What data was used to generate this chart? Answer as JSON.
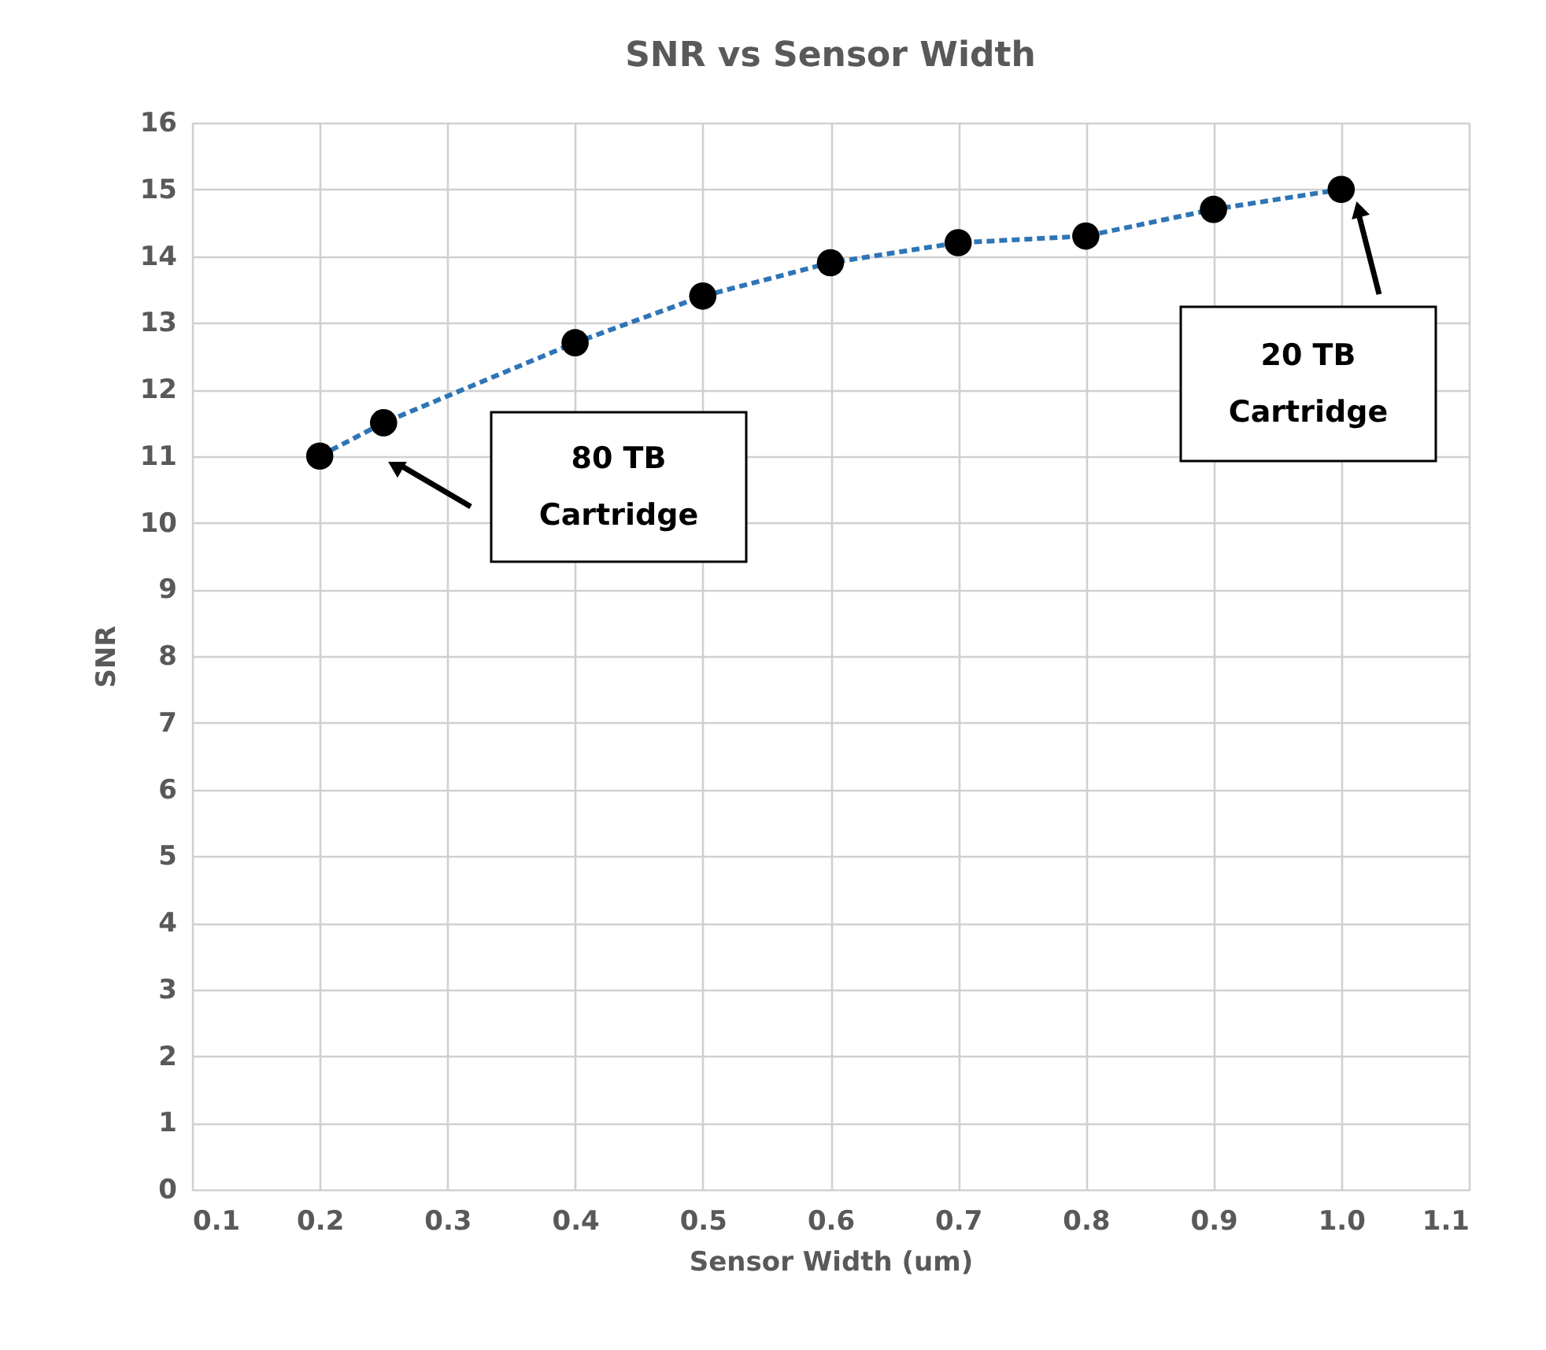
{
  "chart_data": {
    "type": "line",
    "title": "SNR vs Sensor Width",
    "xlabel": "Sensor Width (um)",
    "ylabel": "SNR",
    "x": [
      0.2,
      0.25,
      0.4,
      0.5,
      0.6,
      0.7,
      0.8,
      0.9,
      1.0
    ],
    "series": [
      {
        "color": "#2e75b6",
        "values": [
          11,
          11.5,
          12.7,
          13.4,
          13.9,
          14.2,
          14.3,
          14.7,
          15.0
        ]
      }
    ],
    "xlim": [
      0.1,
      1.1
    ],
    "xticks": [
      0.1,
      0.2,
      0.3,
      0.4,
      0.5,
      0.6,
      0.7,
      0.8,
      0.9,
      {
        "value": 1.0,
        "label": "1.0"
      },
      1.1
    ],
    "ylim": [
      0,
      16
    ],
    "yticks": [
      0,
      1,
      2,
      3,
      4,
      5,
      6,
      7,
      8,
      9,
      10,
      11,
      12,
      13,
      14,
      15,
      16
    ],
    "grid": true,
    "marker": "circle",
    "line_style": "dashed",
    "annotations": [
      "80 TB\nCartridge",
      "20 TB\nCartridge"
    ]
  }
}
